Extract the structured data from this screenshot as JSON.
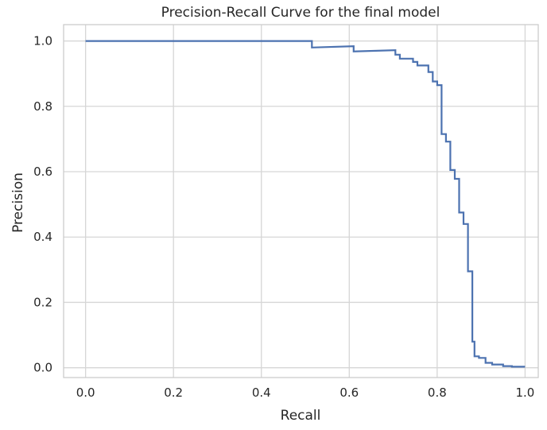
{
  "chart_data": {
    "type": "line",
    "title": "Precision-Recall Curve for the final model",
    "xlabel": "Recall",
    "ylabel": "Precision",
    "xlim": [
      -0.05,
      1.03
    ],
    "ylim": [
      -0.03,
      1.05
    ],
    "xticks": [
      0.0,
      0.2,
      0.4,
      0.6,
      0.8,
      1.0
    ],
    "xtick_labels": [
      "0.0",
      "0.2",
      "0.4",
      "0.6",
      "0.8",
      "1.0"
    ],
    "yticks": [
      0.0,
      0.2,
      0.4,
      0.6,
      0.8,
      1.0
    ],
    "ytick_labels": [
      "0.0",
      "0.2",
      "0.4",
      "0.6",
      "0.8",
      "1.0"
    ],
    "grid": true,
    "step": "post",
    "series": [
      {
        "color": "#4c72b0",
        "x": [
          0.0,
          0.515,
          0.515,
          0.61,
          0.61,
          0.705,
          0.705,
          0.715,
          0.715,
          0.745,
          0.745,
          0.755,
          0.755,
          0.78,
          0.78,
          0.79,
          0.79,
          0.8,
          0.8,
          0.81,
          0.81,
          0.82,
          0.82,
          0.83,
          0.83,
          0.84,
          0.84,
          0.85,
          0.85,
          0.86,
          0.86,
          0.87,
          0.87,
          0.88,
          0.88,
          0.885,
          0.885,
          0.895,
          0.895,
          0.91,
          0.91,
          0.925,
          0.925,
          0.95,
          0.95,
          0.97,
          0.97,
          1.0
        ],
        "y": [
          1.0,
          1.0,
          0.98,
          0.984,
          0.968,
          0.972,
          0.958,
          0.958,
          0.946,
          0.946,
          0.936,
          0.936,
          0.925,
          0.925,
          0.905,
          0.905,
          0.876,
          0.876,
          0.865,
          0.865,
          0.715,
          0.715,
          0.692,
          0.692,
          0.605,
          0.605,
          0.578,
          0.578,
          0.475,
          0.475,
          0.44,
          0.44,
          0.295,
          0.295,
          0.08,
          0.08,
          0.035,
          0.035,
          0.03,
          0.03,
          0.015,
          0.015,
          0.01,
          0.01,
          0.005,
          0.005,
          0.003,
          0.003
        ]
      }
    ]
  }
}
